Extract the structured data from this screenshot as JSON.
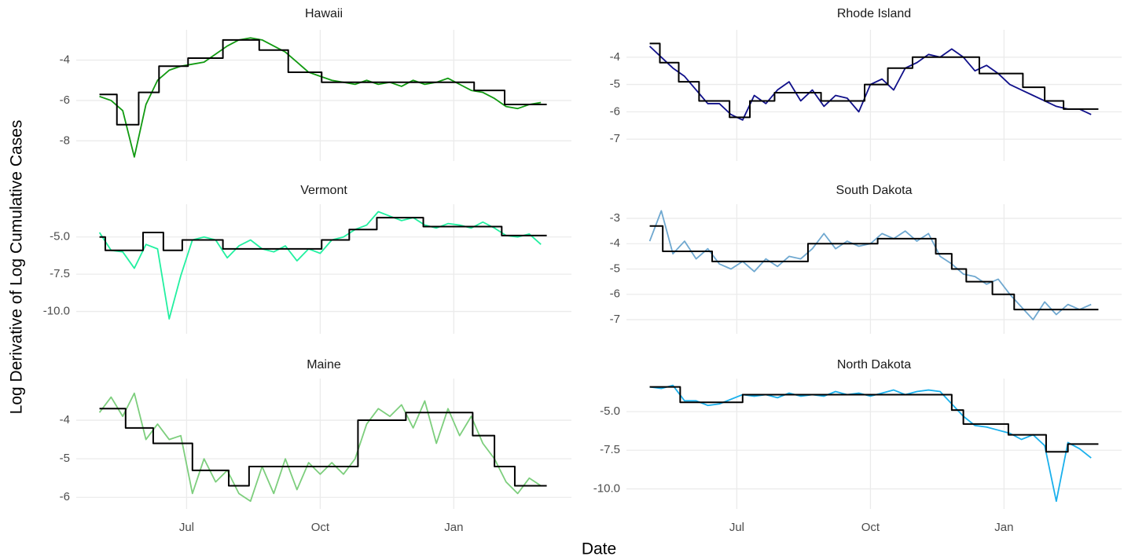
{
  "x_label": "Date",
  "y_label": "Log Derivative of Log Cumulative Cases",
  "xlim": [
    -76,
    265
  ],
  "xticks": [
    {
      "value": 0,
      "label": "Jul"
    },
    {
      "value": 92,
      "label": "Oct"
    },
    {
      "value": 184,
      "label": "Jan"
    }
  ],
  "chart_data": [
    {
      "type": "line",
      "title": "Hawaii",
      "ylim": [
        -9,
        -2.5
      ],
      "yticks": [
        -8,
        -6,
        -4
      ],
      "grid": true,
      "series": [
        {
          "color": "#119a11",
          "x": [
            -60,
            -52,
            -44,
            -36,
            -28,
            -20,
            -12,
            -4,
            4,
            12,
            20,
            28,
            36,
            44,
            52,
            60,
            68,
            76,
            84,
            92,
            100,
            108,
            116,
            124,
            132,
            140,
            148,
            156,
            164,
            172,
            180,
            188,
            196,
            204,
            212,
            220,
            228,
            236,
            244
          ],
          "values": [
            -5.8,
            -6.0,
            -6.5,
            -8.8,
            -6.2,
            -5.0,
            -4.5,
            -4.3,
            -4.2,
            -4.1,
            -3.7,
            -3.3,
            -3.0,
            -2.9,
            -3.0,
            -3.3,
            -3.6,
            -4.1,
            -4.6,
            -4.8,
            -5.0,
            -5.1,
            -5.2,
            -5.0,
            -5.2,
            -5.1,
            -5.3,
            -5.0,
            -5.2,
            -5.1,
            -4.9,
            -5.2,
            -5.5,
            -5.6,
            -5.9,
            -6.3,
            -6.4,
            -6.2,
            -6.1
          ]
        },
        {
          "color": "#000000",
          "step": true,
          "x": [
            -60,
            -48,
            -33,
            -19,
            1,
            25,
            50,
            70,
            93,
            198,
            219,
            248
          ],
          "values": [
            -5.7,
            -7.2,
            -5.6,
            -4.3,
            -3.9,
            -3.0,
            -3.5,
            -4.6,
            -5.1,
            -5.5,
            -6.2,
            -6.2
          ]
        }
      ]
    },
    {
      "type": "line",
      "title": "Rhode Island",
      "ylim": [
        -7.8,
        -3.0
      ],
      "yticks": [
        -7,
        -6,
        -5,
        -4
      ],
      "grid": true,
      "series": [
        {
          "color": "#10108a",
          "x": [
            -60,
            -52,
            -44,
            -36,
            -28,
            -20,
            -12,
            -4,
            4,
            12,
            20,
            28,
            36,
            44,
            52,
            60,
            68,
            76,
            84,
            92,
            100,
            108,
            116,
            124,
            132,
            140,
            148,
            156,
            164,
            172,
            180,
            188,
            196,
            204,
            212,
            220,
            228,
            236,
            244
          ],
          "values": [
            -3.6,
            -4.0,
            -4.4,
            -4.7,
            -5.2,
            -5.7,
            -5.7,
            -6.1,
            -6.3,
            -5.4,
            -5.7,
            -5.2,
            -4.9,
            -5.6,
            -5.2,
            -5.8,
            -5.4,
            -5.5,
            -6.0,
            -5.0,
            -4.8,
            -5.2,
            -4.4,
            -4.2,
            -3.9,
            -4.0,
            -3.7,
            -4.0,
            -4.5,
            -4.3,
            -4.6,
            -5.0,
            -5.2,
            -5.4,
            -5.6,
            -5.8,
            -5.9,
            -5.9,
            -6.1
          ]
        },
        {
          "color": "#000000",
          "step": true,
          "x": [
            -60,
            -53,
            -40,
            -26,
            -5,
            9,
            26,
            58,
            88,
            104,
            121,
            167,
            197,
            212,
            225,
            249
          ],
          "values": [
            -3.5,
            -4.2,
            -4.9,
            -5.6,
            -6.2,
            -5.6,
            -5.3,
            -5.6,
            -5.0,
            -4.4,
            -4.0,
            -4.6,
            -5.1,
            -5.6,
            -5.9,
            -5.9
          ]
        }
      ]
    },
    {
      "type": "line",
      "title": "Vermont",
      "ylim": [
        -11.5,
        -2.8
      ],
      "yticks": [
        {
          "value": -10,
          "label": "-10.0"
        },
        -7.5,
        {
          "value": -5,
          "label": "-5.0"
        }
      ],
      "grid": true,
      "series": [
        {
          "color": "#22f0a0",
          "x": [
            -60,
            -52,
            -44,
            -36,
            -28,
            -20,
            -12,
            -4,
            4,
            12,
            20,
            28,
            36,
            44,
            52,
            60,
            68,
            76,
            84,
            92,
            100,
            108,
            116,
            124,
            132,
            140,
            148,
            156,
            164,
            172,
            180,
            188,
            196,
            204,
            212,
            220,
            228,
            236,
            244
          ],
          "values": [
            -4.7,
            -5.9,
            -6.0,
            -7.1,
            -5.5,
            -5.8,
            -10.5,
            -7.6,
            -5.2,
            -5.0,
            -5.2,
            -6.4,
            -5.6,
            -5.2,
            -5.8,
            -6.0,
            -5.6,
            -6.6,
            -5.8,
            -6.1,
            -5.2,
            -5.0,
            -4.5,
            -4.2,
            -3.3,
            -3.6,
            -3.9,
            -3.7,
            -4.2,
            -4.4,
            -4.1,
            -4.2,
            -4.4,
            -4.0,
            -4.4,
            -4.9,
            -5.0,
            -4.8,
            -5.5
          ]
        },
        {
          "color": "#000000",
          "step": true,
          "x": [
            -60,
            -56,
            -30,
            -16,
            -3,
            25,
            93,
            112,
            131,
            163,
            217,
            248
          ],
          "values": [
            -5.0,
            -5.9,
            -4.7,
            -5.9,
            -5.2,
            -5.8,
            -5.2,
            -4.5,
            -3.7,
            -4.3,
            -4.9,
            -4.9
          ]
        }
      ]
    },
    {
      "type": "line",
      "title": "South Dakota",
      "ylim": [
        -7.56,
        -2.44
      ],
      "yticks": [
        -7,
        -6,
        -5,
        -4,
        -3
      ],
      "grid": true,
      "series": [
        {
          "color": "#6fa8d0",
          "x": [
            -60,
            -52,
            -44,
            -36,
            -28,
            -20,
            -12,
            -4,
            4,
            12,
            20,
            28,
            36,
            44,
            52,
            60,
            68,
            76,
            84,
            92,
            100,
            108,
            116,
            124,
            132,
            140,
            148,
            156,
            164,
            172,
            180,
            188,
            196,
            204,
            212,
            220,
            228,
            236,
            244
          ],
          "values": [
            -3.9,
            -2.7,
            -4.4,
            -3.9,
            -4.6,
            -4.2,
            -4.8,
            -5.0,
            -4.7,
            -5.1,
            -4.6,
            -4.9,
            -4.5,
            -4.6,
            -4.2,
            -3.6,
            -4.2,
            -3.9,
            -4.1,
            -4.0,
            -3.6,
            -3.8,
            -3.5,
            -3.9,
            -3.6,
            -4.5,
            -4.8,
            -5.2,
            -5.3,
            -5.6,
            -5.4,
            -6.0,
            -6.5,
            -7.0,
            -6.3,
            -6.8,
            -6.4,
            -6.6,
            -6.4
          ]
        },
        {
          "color": "#000000",
          "step": true,
          "x": [
            -60,
            -51,
            -17,
            49,
            97,
            137,
            148,
            158,
            176,
            191,
            249
          ],
          "values": [
            -3.3,
            -4.3,
            -4.7,
            -4.0,
            -3.8,
            -4.4,
            -5.0,
            -5.5,
            -6.0,
            -6.6,
            -6.6
          ]
        }
      ]
    },
    {
      "type": "line",
      "title": "Maine",
      "ylim": [
        -6.3,
        -2.92
      ],
      "yticks": [
        -6,
        -5,
        -4
      ],
      "grid": true,
      "series": [
        {
          "color": "#7dce7d",
          "x": [
            -60,
            -52,
            -44,
            -36,
            -28,
            -20,
            -12,
            -4,
            4,
            12,
            20,
            28,
            36,
            44,
            52,
            60,
            68,
            76,
            84,
            92,
            100,
            108,
            116,
            124,
            132,
            140,
            148,
            156,
            164,
            172,
            180,
            188,
            196,
            204,
            212,
            220,
            228,
            236,
            244
          ],
          "values": [
            -3.8,
            -3.4,
            -3.9,
            -3.3,
            -4.5,
            -4.1,
            -4.5,
            -4.4,
            -5.9,
            -5.0,
            -5.6,
            -5.3,
            -5.9,
            -6.1,
            -5.2,
            -5.9,
            -5.0,
            -5.8,
            -5.1,
            -5.4,
            -5.1,
            -5.4,
            -5.0,
            -4.1,
            -3.7,
            -3.9,
            -3.6,
            -4.2,
            -3.5,
            -4.6,
            -3.7,
            -4.4,
            -3.9,
            -4.6,
            -5.0,
            -5.6,
            -5.9,
            -5.5,
            -5.7
          ]
        },
        {
          "color": "#000000",
          "step": true,
          "x": [
            -60,
            -42,
            -23,
            4,
            29,
            43,
            118,
            151,
            197,
            212,
            226,
            248
          ],
          "values": [
            -3.7,
            -4.2,
            -4.6,
            -5.3,
            -5.7,
            -5.2,
            -4.0,
            -3.8,
            -4.4,
            -5.2,
            -5.7,
            -5.7
          ]
        }
      ]
    },
    {
      "type": "line",
      "title": "North Dakota",
      "ylim": [
        -11.3,
        -2.86
      ],
      "yticks": [
        {
          "value": -10,
          "label": "-10.0"
        },
        -7.5,
        {
          "value": -5,
          "label": "-5.0"
        }
      ],
      "grid": true,
      "series": [
        {
          "color": "#1ab0ec",
          "x": [
            -60,
            -52,
            -44,
            -36,
            -28,
            -20,
            -12,
            -4,
            4,
            12,
            20,
            28,
            36,
            44,
            52,
            60,
            68,
            76,
            84,
            92,
            100,
            108,
            116,
            124,
            132,
            140,
            148,
            156,
            164,
            172,
            180,
            188,
            196,
            204,
            212,
            220,
            228,
            236,
            244
          ],
          "values": [
            -3.4,
            -3.5,
            -3.3,
            -4.3,
            -4.3,
            -4.6,
            -4.5,
            -4.2,
            -3.9,
            -4.0,
            -3.9,
            -4.1,
            -3.8,
            -4.0,
            -3.9,
            -4.0,
            -3.7,
            -3.9,
            -3.8,
            -4.0,
            -3.8,
            -3.6,
            -3.9,
            -3.7,
            -3.6,
            -3.7,
            -4.5,
            -5.3,
            -5.9,
            -6.0,
            -6.2,
            -6.4,
            -6.8,
            -6.5,
            -7.2,
            -10.8,
            -7.0,
            -7.4,
            -8.0
          ]
        },
        {
          "color": "#000000",
          "step": true,
          "x": [
            -60,
            -39,
            4,
            148,
            156,
            187,
            213,
            228,
            249
          ],
          "values": [
            -3.4,
            -4.4,
            -3.9,
            -4.9,
            -5.8,
            -6.5,
            -7.6,
            -7.1,
            -7.1
          ]
        }
      ]
    }
  ]
}
